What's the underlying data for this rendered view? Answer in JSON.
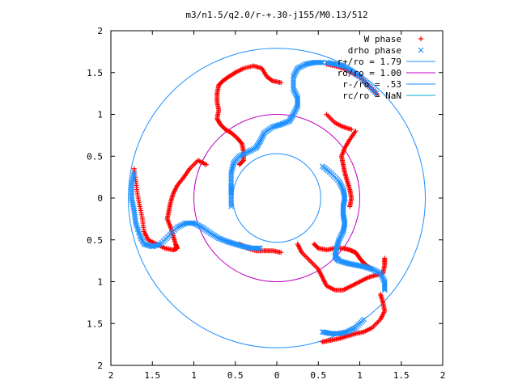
{
  "chart_data": {
    "type": "scatter",
    "title": "m3/n1.5/q2.0/r-+.30-j155/M0.13/512",
    "xlabel": "",
    "ylabel": "",
    "xlim": [
      2,
      -2
    ],
    "ylim": [
      -2,
      2
    ],
    "x_ticks": [
      {
        "v": -2,
        "label": "2"
      },
      {
        "v": -1.5,
        "label": "1.5"
      },
      {
        "v": -1,
        "label": "1"
      },
      {
        "v": -0.5,
        "label": "0.5"
      },
      {
        "v": 0,
        "label": "0"
      },
      {
        "v": 0.5,
        "label": "0.5"
      },
      {
        "v": 1,
        "label": "1"
      },
      {
        "v": 1.5,
        "label": "1.5"
      },
      {
        "v": 2,
        "label": "2"
      }
    ],
    "y_ticks": [
      {
        "v": 2,
        "label": "2"
      },
      {
        "v": 1.5,
        "label": "1.5"
      },
      {
        "v": 1,
        "label": "1"
      },
      {
        "v": 0.5,
        "label": "0.5"
      },
      {
        "v": 0,
        "label": "0"
      },
      {
        "v": -0.5,
        "label": "0.5"
      },
      {
        "v": -1,
        "label": "1"
      },
      {
        "v": -1.5,
        "label": "1.5"
      },
      {
        "v": -2,
        "label": "2"
      }
    ],
    "legend_position": "top-right",
    "legend": [
      {
        "name": "W phase",
        "kind": "plus",
        "color": "#ff0000"
      },
      {
        "name": "drho phase",
        "kind": "cross",
        "color": "#1e90ff"
      },
      {
        "name": "r+/ro = 1.79",
        "kind": "line",
        "color": "#1e90ff"
      },
      {
        "name": "ro/ro = 1.00",
        "kind": "line",
        "color": "#c000c0"
      },
      {
        "name": "r-/ro = .53",
        "kind": "line",
        "color": "#1e90ff"
      },
      {
        "name": "rc/ro = NaN",
        "kind": "line",
        "color": "#00b0c8"
      }
    ],
    "circles": [
      {
        "r": 1.79,
        "color": "#1e90ff"
      },
      {
        "r": 1.0,
        "color": "#c000c0"
      },
      {
        "r": 0.53,
        "color": "#1e90ff"
      }
    ],
    "series": [
      {
        "name": "W phase",
        "color": "#ff0000",
        "marker": "plus",
        "arms": [
          [
            [
              -0.05,
              1.38
            ],
            [
              0.05,
              1.4
            ],
            [
              0.12,
              1.45
            ],
            [
              0.18,
              1.55
            ],
            [
              0.28,
              1.58
            ],
            [
              0.4,
              1.55
            ],
            [
              0.5,
              1.5
            ],
            [
              0.58,
              1.45
            ],
            [
              0.65,
              1.4
            ],
            [
              0.7,
              1.35
            ],
            [
              0.72,
              1.25
            ],
            [
              0.72,
              1.15
            ],
            [
              0.7,
              1.05
            ],
            [
              0.72,
              0.95
            ],
            [
              0.68,
              0.88
            ],
            [
              0.62,
              0.82
            ],
            [
              0.55,
              0.78
            ],
            [
              0.48,
              0.72
            ],
            [
              0.42,
              0.65
            ],
            [
              0.4,
              0.55
            ],
            [
              0.4,
              0.45
            ],
            [
              0.45,
              0.4
            ]
          ],
          [
            [
              -0.25,
              -0.55
            ],
            [
              -0.3,
              -0.65
            ],
            [
              -0.4,
              -0.75
            ],
            [
              -0.5,
              -0.85
            ],
            [
              -0.55,
              -0.95
            ],
            [
              -0.6,
              -1.05
            ],
            [
              -0.7,
              -1.1
            ],
            [
              -0.8,
              -1.1
            ],
            [
              -0.9,
              -1.05
            ],
            [
              -1.0,
              -1.0
            ],
            [
              -1.1,
              -0.95
            ],
            [
              -1.2,
              -0.92
            ],
            [
              -1.28,
              -0.9
            ],
            [
              -1.3,
              -0.8
            ],
            [
              -1.3,
              -0.72
            ]
          ],
          [
            [
              -0.45,
              -0.55
            ],
            [
              -0.5,
              -0.6
            ],
            [
              -0.6,
              -0.62
            ],
            [
              -0.7,
              -0.6
            ],
            [
              -0.8,
              -0.6
            ],
            [
              -0.88,
              -0.62
            ],
            [
              -0.95,
              -0.65
            ],
            [
              -1.0,
              -0.72
            ],
            [
              -1.05,
              -0.78
            ],
            [
              -1.1,
              -0.82
            ],
            [
              -1.15,
              -0.85
            ]
          ],
          [
            [
              0.85,
              0.4
            ],
            [
              0.95,
              0.45
            ],
            [
              1.05,
              0.35
            ],
            [
              1.12,
              0.25
            ],
            [
              1.2,
              0.15
            ],
            [
              1.25,
              0.05
            ],
            [
              1.28,
              -0.05
            ],
            [
              1.3,
              -0.15
            ],
            [
              1.32,
              -0.25
            ],
            [
              1.28,
              -0.35
            ],
            [
              1.25,
              -0.45
            ],
            [
              1.22,
              -0.55
            ],
            [
              1.2,
              -0.6
            ],
            [
              1.25,
              -0.62
            ],
            [
              1.35,
              -0.6
            ],
            [
              1.45,
              -0.55
            ],
            [
              1.55,
              -0.5
            ],
            [
              1.6,
              -0.4
            ],
            [
              1.62,
              -0.25
            ],
            [
              1.65,
              -0.1
            ],
            [
              1.68,
              0.05
            ],
            [
              1.7,
              0.2
            ],
            [
              1.72,
              0.35
            ]
          ],
          [
            [
              -0.95,
              0.8
            ],
            [
              -0.88,
              0.7
            ],
            [
              -0.82,
              0.6
            ],
            [
              -0.78,
              0.5
            ],
            [
              -0.8,
              0.4
            ],
            [
              -0.82,
              0.3
            ],
            [
              -0.85,
              0.2
            ],
            [
              -0.88,
              0.1
            ],
            [
              -0.9,
              0.0
            ],
            [
              -0.88,
              -0.1
            ]
          ],
          [
            [
              0.45,
              -0.55
            ],
            [
              0.35,
              -0.6
            ],
            [
              0.25,
              -0.63
            ],
            [
              0.15,
              -0.63
            ],
            [
              0.05,
              -0.63
            ],
            [
              -0.05,
              -0.65
            ]
          ],
          [
            [
              -0.6,
              1.0
            ],
            [
              -0.7,
              0.9
            ],
            [
              -0.8,
              0.85
            ],
            [
              -0.9,
              0.82
            ]
          ],
          [
            [
              -1.25,
              -1.15
            ],
            [
              -1.28,
              -1.25
            ],
            [
              -1.3,
              -1.35
            ],
            [
              -1.25,
              -1.45
            ],
            [
              -1.15,
              -1.55
            ],
            [
              -1.05,
              -1.6
            ],
            [
              -0.95,
              -1.62
            ],
            [
              -0.85,
              -1.65
            ],
            [
              -0.75,
              -1.68
            ],
            [
              -0.65,
              -1.7
            ],
            [
              -0.55,
              -1.72
            ]
          ],
          [
            [
              -1.2,
              1.25
            ],
            [
              -1.1,
              1.35
            ],
            [
              -1.0,
              1.45
            ],
            [
              -0.9,
              1.5
            ],
            [
              -0.8,
              1.55
            ],
            [
              -0.7,
              1.58
            ],
            [
              -0.6,
              1.6
            ]
          ]
        ]
      },
      {
        "name": "drho phase",
        "color": "#1e90ff",
        "marker": "cross",
        "arms": [
          [
            [
              -0.55,
              1.62
            ],
            [
              -0.45,
              1.62
            ],
            [
              -0.35,
              1.6
            ],
            [
              -0.25,
              1.55
            ],
            [
              -0.2,
              1.45
            ],
            [
              -0.2,
              1.3
            ],
            [
              -0.25,
              1.2
            ],
            [
              -0.25,
              1.1
            ],
            [
              -0.2,
              1.0
            ],
            [
              -0.15,
              0.92
            ],
            [
              -0.05,
              0.88
            ],
            [
              0.05,
              0.85
            ],
            [
              0.15,
              0.78
            ],
            [
              0.2,
              0.68
            ],
            [
              0.25,
              0.6
            ],
            [
              0.35,
              0.55
            ],
            [
              0.45,
              0.5
            ],
            [
              0.52,
              0.42
            ],
            [
              0.55,
              0.3
            ],
            [
              0.55,
              0.15
            ],
            [
              0.55,
              0.05
            ],
            [
              0.55,
              -0.1
            ]
          ],
          [
            [
              -0.55,
              0.38
            ],
            [
              -0.65,
              0.3
            ],
            [
              -0.75,
              0.2
            ],
            [
              -0.8,
              0.1
            ],
            [
              -0.82,
              0.0
            ],
            [
              -0.8,
              -0.1
            ],
            [
              -0.8,
              -0.2
            ],
            [
              -0.82,
              -0.3
            ],
            [
              -0.8,
              -0.4
            ],
            [
              -0.75,
              -0.5
            ],
            [
              -0.72,
              -0.6
            ],
            [
              -0.7,
              -0.7
            ],
            [
              -0.75,
              -0.75
            ],
            [
              -0.85,
              -0.78
            ],
            [
              -0.95,
              -0.8
            ],
            [
              -1.05,
              -0.82
            ],
            [
              -1.15,
              -0.85
            ],
            [
              -1.25,
              -0.9
            ],
            [
              -1.3,
              -1.0
            ],
            [
              -1.3,
              -1.1
            ]
          ],
          [
            [
              0.2,
              -0.6
            ],
            [
              0.3,
              -0.6
            ],
            [
              0.4,
              -0.58
            ],
            [
              0.5,
              -0.55
            ],
            [
              0.6,
              -0.52
            ],
            [
              0.7,
              -0.48
            ],
            [
              0.8,
              -0.42
            ],
            [
              0.9,
              -0.35
            ],
            [
              1.0,
              -0.3
            ],
            [
              1.1,
              -0.3
            ],
            [
              1.2,
              -0.35
            ],
            [
              1.3,
              -0.45
            ],
            [
              1.4,
              -0.55
            ],
            [
              1.5,
              -0.58
            ],
            [
              1.6,
              -0.55
            ],
            [
              1.65,
              -0.45
            ],
            [
              1.7,
              -0.3
            ],
            [
              1.72,
              -0.15
            ],
            [
              1.75,
              0.0
            ],
            [
              1.75,
              0.15
            ],
            [
              1.72,
              0.3
            ]
          ],
          [
            [
              -1.2,
              1.25
            ],
            [
              -1.1,
              1.35
            ],
            [
              -1.0,
              1.45
            ],
            [
              -0.9,
              1.52
            ],
            [
              -0.8,
              1.58
            ],
            [
              -0.7,
              1.6
            ],
            [
              -0.6,
              1.62
            ]
          ],
          [
            [
              -1.05,
              -1.45
            ],
            [
              -0.95,
              -1.55
            ],
            [
              -0.85,
              -1.6
            ],
            [
              -0.75,
              -1.62
            ],
            [
              -0.65,
              -1.62
            ],
            [
              -0.55,
              -1.6
            ]
          ]
        ]
      }
    ]
  }
}
